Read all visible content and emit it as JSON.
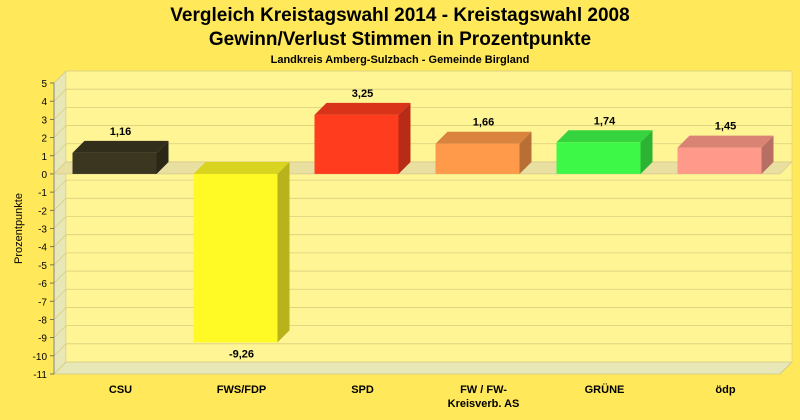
{
  "chart_data": {
    "type": "bar",
    "title": "Vergleich Kreistagswahl 2014 - Kreistagswahl 2008",
    "subtitle_line": "Gewinn/Verlust Stimmen in Prozentpunkte",
    "subtitle": "Landkreis Amberg-Sulzbach - Gemeinde Birgland",
    "xlabel": "",
    "ylabel": "Prozentpunkte",
    "ylim": [
      -11,
      5
    ],
    "yticks": [
      5,
      4,
      3,
      2,
      1,
      0,
      -1,
      -2,
      -3,
      -4,
      -5,
      -6,
      -7,
      -8,
      -9,
      -10,
      -11
    ],
    "grid": true,
    "categories": [
      [
        "CSU"
      ],
      [
        "FWS/FDP"
      ],
      [
        "SPD"
      ],
      [
        "FW / FW-",
        "Kreisverb. AS"
      ],
      [
        "GRÜNE"
      ],
      [
        "ödp"
      ]
    ],
    "values": [
      1.16,
      -9.26,
      3.25,
      1.66,
      1.74,
      1.45
    ],
    "value_labels": [
      "1,16",
      "-9,26",
      "3,25",
      "1,66",
      "1,74",
      "1,45"
    ],
    "colors": [
      "#3a3620",
      "#fff926",
      "#ff3c1e",
      "#ff9a4a",
      "#3ef848",
      "#ff9a8a"
    ]
  },
  "theme": {
    "background": "#ffe85a",
    "plot_back": "#fff595",
    "plot_side": "#e7e7b8",
    "grid_color": "#d8cf7e"
  }
}
